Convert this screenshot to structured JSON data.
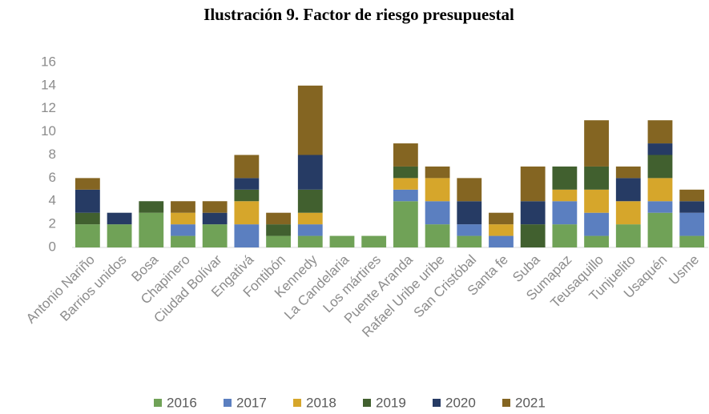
{
  "chart_data": {
    "type": "stacked_bar",
    "title": "Ilustración 9. Factor de riesgo presupuestal",
    "categories": [
      "Antonio Nariño",
      "Barrios unidos",
      "Bosa",
      "Chapinero",
      "Ciudad Bolívar",
      "Engativá",
      "Fontibón",
      "Kennedy",
      "La Candelaria",
      "Los mártires",
      "Puente Aranda",
      "Rafael Uribe uribe",
      "San Cristóbal",
      "Santa fe",
      "Suba",
      "Sumapaz",
      "Teusaquillo",
      "Tunjuelito",
      "Usaquén",
      "Usme"
    ],
    "series": [
      {
        "name": "2016",
        "color": "#70a257",
        "values": [
          2,
          2,
          3,
          1,
          2,
          0,
          1,
          1,
          1,
          1,
          4,
          2,
          1,
          0,
          0,
          2,
          1,
          2,
          3,
          1
        ]
      },
      {
        "name": "2017",
        "color": "#5b7fc0",
        "values": [
          0,
          0,
          0,
          1,
          0,
          2,
          0,
          1,
          0,
          0,
          1,
          2,
          1,
          1,
          0,
          2,
          2,
          0,
          1,
          2
        ]
      },
      {
        "name": "2018",
        "color": "#d6a62b",
        "values": [
          0,
          0,
          0,
          1,
          0,
          2,
          0,
          1,
          0,
          0,
          1,
          2,
          0,
          1,
          0,
          1,
          2,
          2,
          2,
          0
        ]
      },
      {
        "name": "2019",
        "color": "#41602f",
        "values": [
          1,
          0,
          1,
          0,
          0,
          1,
          1,
          2,
          0,
          0,
          1,
          0,
          0,
          0,
          2,
          2,
          2,
          0,
          2,
          0
        ]
      },
      {
        "name": "2020",
        "color": "#263b64",
        "values": [
          2,
          1,
          0,
          0,
          1,
          1,
          0,
          3,
          0,
          0,
          0,
          0,
          2,
          0,
          2,
          0,
          0,
          2,
          1,
          1
        ]
      },
      {
        "name": "2021",
        "color": "#846522",
        "values": [
          1,
          0,
          0,
          1,
          1,
          2,
          1,
          6,
          0,
          0,
          2,
          1,
          2,
          1,
          3,
          0,
          4,
          1,
          2,
          1
        ]
      }
    ],
    "ylim": [
      0,
      16
    ],
    "yticks": [
      0,
      2,
      4,
      6,
      8,
      10,
      12,
      14,
      16
    ],
    "legend": "bottom"
  }
}
